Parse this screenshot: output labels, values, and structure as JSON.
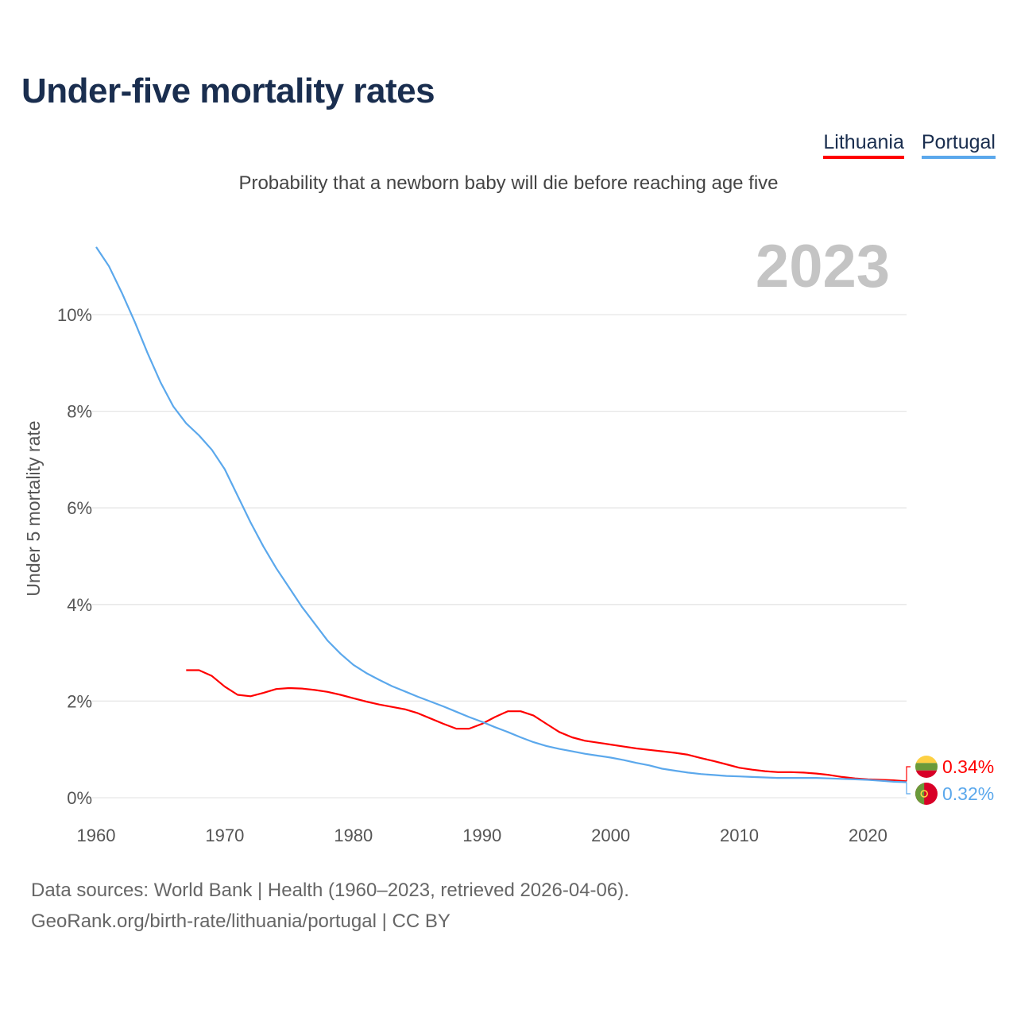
{
  "title": "Under-five mortality rates",
  "subtitle": "Probability that a newborn baby will die before reaching age five",
  "year_label": "2023",
  "legend": [
    {
      "label": "Lithuania",
      "color": "#ff0000"
    },
    {
      "label": "Portugal",
      "color": "#5ba8ec"
    }
  ],
  "sources": {
    "line1": "Data sources: World Bank | Health (1960–2023, retrieved 2026-04-06).",
    "line2": "GeoRank.org/birth-rate/lithuania/portugal | CC BY"
  },
  "chart_data": {
    "type": "line",
    "title": "Under-five mortality rates",
    "ylabel": "Under 5 mortality rate",
    "xlabel": "",
    "xlim": [
      1960,
      2023
    ],
    "ylim": [
      0,
      10
    ],
    "x_ticks": [
      1960,
      1970,
      1980,
      1990,
      2000,
      2010,
      2020
    ],
    "y_ticks": [
      0,
      2,
      4,
      6,
      8,
      10
    ],
    "y_tick_labels": [
      "0%",
      "2%",
      "4%",
      "6%",
      "8%",
      "10%"
    ],
    "grid": true,
    "legend_position": "top-right",
    "series": [
      {
        "name": "Lithuania",
        "color": "#ff0000",
        "start_year": 1967,
        "end_label": "0.34%",
        "values": [
          2.64,
          2.64,
          2.52,
          2.3,
          2.13,
          2.1,
          2.17,
          2.25,
          2.27,
          2.26,
          2.23,
          2.19,
          2.13,
          2.06,
          1.99,
          1.93,
          1.88,
          1.83,
          1.75,
          1.64,
          1.53,
          1.43,
          1.43,
          1.53,
          1.67,
          1.79,
          1.79,
          1.7,
          1.53,
          1.36,
          1.25,
          1.18,
          1.14,
          1.1,
          1.06,
          1.02,
          0.99,
          0.96,
          0.93,
          0.89,
          0.82,
          0.76,
          0.69,
          0.62,
          0.58,
          0.55,
          0.53,
          0.53,
          0.52,
          0.5,
          0.47,
          0.43,
          0.4,
          0.38,
          0.37,
          0.36,
          0.34
        ]
      },
      {
        "name": "Portugal",
        "color": "#5ba8ec",
        "start_year": 1960,
        "end_label": "0.32%",
        "values": [
          11.4,
          11.0,
          10.45,
          9.85,
          9.2,
          8.6,
          8.1,
          7.75,
          7.5,
          7.2,
          6.8,
          6.25,
          5.7,
          5.2,
          4.75,
          4.35,
          3.95,
          3.6,
          3.25,
          2.98,
          2.75,
          2.58,
          2.44,
          2.31,
          2.2,
          2.09,
          1.99,
          1.89,
          1.78,
          1.67,
          1.57,
          1.46,
          1.36,
          1.25,
          1.15,
          1.07,
          1.01,
          0.96,
          0.91,
          0.87,
          0.83,
          0.78,
          0.72,
          0.67,
          0.6,
          0.56,
          0.52,
          0.49,
          0.47,
          0.45,
          0.44,
          0.43,
          0.42,
          0.41,
          0.41,
          0.41,
          0.41,
          0.4,
          0.39,
          0.38,
          0.37,
          0.35,
          0.33,
          0.32
        ]
      }
    ]
  }
}
